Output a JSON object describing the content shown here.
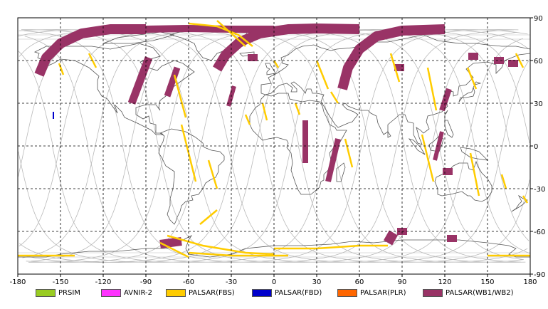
{
  "map": {
    "lon_ticks": [
      "-180",
      "-150",
      "-120",
      "-90",
      "-60",
      "-30",
      "0",
      "30",
      "60",
      "90",
      "120",
      "150",
      "180"
    ],
    "lat_ticks_right": [
      "90",
      "60",
      "30",
      "0",
      "-30",
      "-60",
      "-90"
    ],
    "lon_range": [
      -180,
      180
    ],
    "lat_range": [
      -90,
      90
    ],
    "grid": "dashed",
    "colors": {
      "frame": "#000000",
      "coast": "#555555",
      "orbit": "#b9b9b9",
      "grid": "#000000"
    }
  },
  "legend": {
    "items": [
      {
        "label": "PRSIM",
        "color": "#99cc22"
      },
      {
        "label": "AVNIR-2",
        "color": "#ff33ff"
      },
      {
        "label": "PALSAR(FBS)",
        "color": "#ffcc00"
      },
      {
        "label": "PALSAR(FBD)",
        "color": "#0000cc"
      },
      {
        "label": "PALSAR(PLR)",
        "color": "#ff6600"
      },
      {
        "label": "PALSAR(WB1/WB2)",
        "color": "#993366"
      }
    ]
  }
}
